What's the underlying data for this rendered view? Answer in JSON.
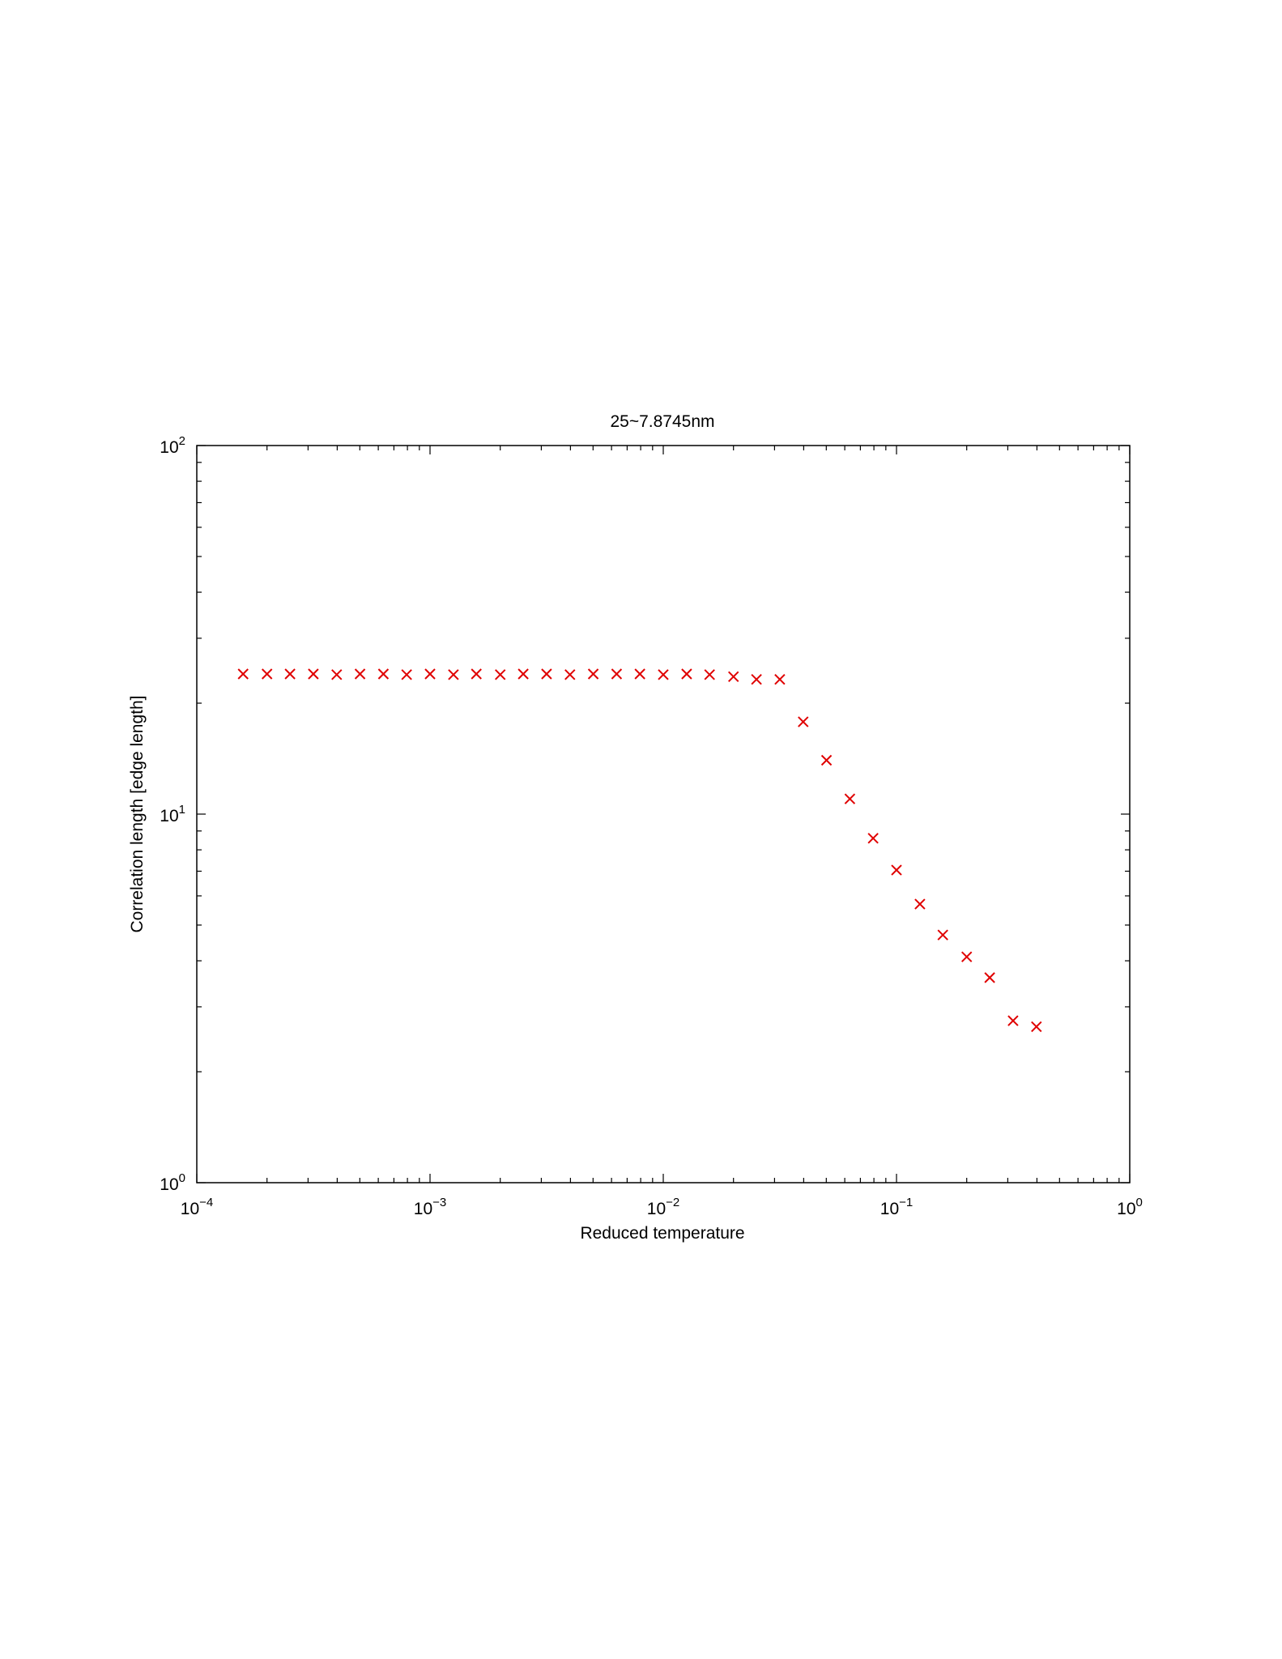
{
  "chart_data": {
    "type": "scatter",
    "title": "25~7.8745nm",
    "xlabel": "Reduced temperature",
    "ylabel": "Correlation length [edge length]",
    "xscale": "log",
    "yscale": "log",
    "xlim": [
      0.0001,
      1
    ],
    "ylim": [
      1,
      100
    ],
    "grid": false,
    "legend": "none",
    "marker": "x",
    "marker_color": "#e00000",
    "x_ticks": [
      {
        "base": "10",
        "exp": "−4"
      },
      {
        "base": "10",
        "exp": "−3"
      },
      {
        "base": "10",
        "exp": "−2"
      },
      {
        "base": "10",
        "exp": "−1"
      },
      {
        "base": "10",
        "exp": "0"
      }
    ],
    "y_ticks": [
      {
        "base": "10",
        "exp": "0"
      },
      {
        "base": "10",
        "exp": "1"
      },
      {
        "base": "10",
        "exp": "2"
      }
    ],
    "series": [
      {
        "x": [
          0.000158,
          0.0002,
          0.000251,
          0.000316,
          0.000398,
          0.000501,
          0.000631,
          0.000794,
          0.001,
          0.00126,
          0.00158,
          0.002,
          0.00251,
          0.00316,
          0.00398,
          0.00501,
          0.00631,
          0.00794,
          0.01,
          0.0126,
          0.0158,
          0.02,
          0.0251,
          0.0316,
          0.0398,
          0.0501,
          0.0631,
          0.0794,
          0.1,
          0.126,
          0.158,
          0.2,
          0.251,
          0.316,
          0.398
        ],
        "y": [
          24,
          24,
          24,
          24,
          23.9,
          24,
          24,
          23.9,
          24,
          23.9,
          24,
          23.9,
          24,
          24,
          23.9,
          24,
          24,
          24,
          23.9,
          24,
          23.9,
          23.6,
          23.2,
          23.2,
          17.8,
          14,
          11,
          8.6,
          7.05,
          5.7,
          4.7,
          4.1,
          3.6,
          2.75,
          2.65
        ]
      }
    ]
  }
}
